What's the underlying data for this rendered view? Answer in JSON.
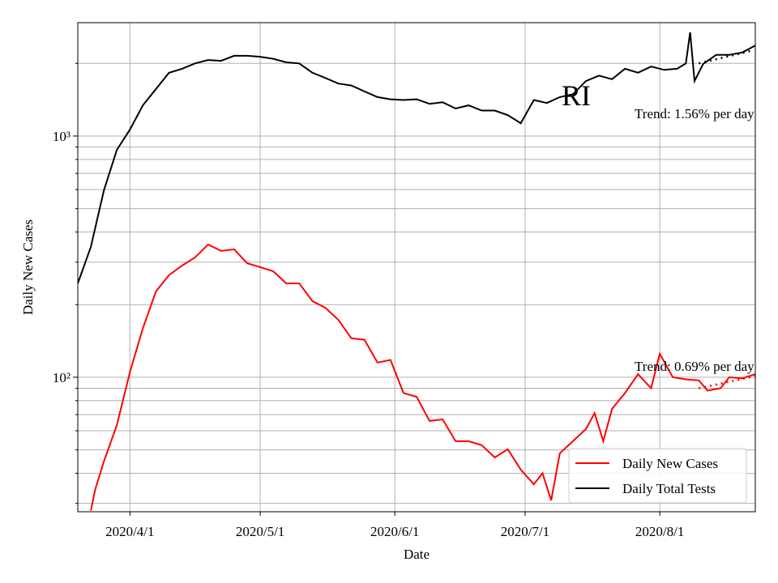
{
  "chart_data": {
    "type": "line",
    "x_label": "Date",
    "y_label": "Daily New Cases",
    "log_y": true,
    "grid": true,
    "legend": "lower right",
    "xlim": [
      "2020/3/20",
      "2020/8/23"
    ],
    "xticks": [
      "2020/4/1",
      "2020/5/1",
      "2020/6/1",
      "2020/7/1",
      "2020/8/1"
    ],
    "ylim": [
      27.7,
      2950
    ],
    "yticks": [
      {
        "value": 100,
        "label": "10²"
      },
      {
        "value": 1000,
        "label": "10³"
      }
    ],
    "yminorticks": [
      30,
      40,
      50,
      60,
      70,
      80,
      90,
      200,
      300,
      400,
      500,
      600,
      700,
      800,
      900,
      2000
    ],
    "annotations": [
      "RI",
      "Trend: 1.56% per day",
      "Trend: 0.69% per day"
    ],
    "series": [
      {
        "name": "Daily New Cases",
        "color": "#ff0000",
        "x": [
          "2020/3/23",
          "2020/3/24",
          "2020/3/26",
          "2020/3/29",
          "2020/4/1",
          "2020/4/4",
          "2020/4/7",
          "2020/4/10",
          "2020/4/13",
          "2020/4/16",
          "2020/4/19",
          "2020/4/22",
          "2020/4/25",
          "2020/4/28",
          "2020/5/1",
          "2020/5/4",
          "2020/5/7",
          "2020/5/10",
          "2020/5/13",
          "2020/5/16",
          "2020/5/19",
          "2020/5/22",
          "2020/5/25",
          "2020/5/28",
          "2020/5/31",
          "2020/6/3",
          "2020/6/6",
          "2020/6/9",
          "2020/6/12",
          "2020/6/15",
          "2020/6/18",
          "2020/6/21",
          "2020/6/24",
          "2020/6/27",
          "2020/6/30",
          "2020/7/3",
          "2020/7/5",
          "2020/7/7",
          "2020/7/9",
          "2020/7/12",
          "2020/7/15",
          "2020/7/17",
          "2020/7/19",
          "2020/7/21",
          "2020/7/24",
          "2020/7/27",
          "2020/7/30",
          "2020/8/1",
          "2020/8/4",
          "2020/8/7",
          "2020/8/10",
          "2020/8/12",
          "2020/8/15",
          "2020/8/17",
          "2020/8/20",
          "2020/8/23"
        ],
        "values": [
          28,
          34.2,
          44.8,
          63.4,
          105,
          160,
          227,
          265,
          290,
          314,
          355,
          334,
          339,
          297,
          286,
          275,
          245,
          245,
          207,
          194,
          173,
          145,
          143,
          115,
          118,
          86,
          83,
          65.9,
          66.9,
          54.3,
          54.3,
          52.3,
          46.5,
          50.3,
          41.4,
          36,
          40,
          30.9,
          48.4,
          54.3,
          61,
          71,
          54.3,
          74,
          86,
          103,
          90,
          125,
          100,
          98,
          97,
          88,
          90,
          100,
          99,
          103
        ]
      },
      {
        "name": "Daily Total Tests",
        "color": "#000000",
        "x": [
          "2020/3/20",
          "2020/3/23",
          "2020/3/26",
          "2020/3/29",
          "2020/4/1",
          "2020/4/4",
          "2020/4/7",
          "2020/4/10",
          "2020/4/13",
          "2020/4/16",
          "2020/4/19",
          "2020/4/22",
          "2020/4/25",
          "2020/4/28",
          "2020/5/1",
          "2020/5/4",
          "2020/5/7",
          "2020/5/10",
          "2020/5/13",
          "2020/5/16",
          "2020/5/19",
          "2020/5/22",
          "2020/5/25",
          "2020/5/28",
          "2020/5/31",
          "2020/6/3",
          "2020/6/6",
          "2020/6/9",
          "2020/6/12",
          "2020/6/15",
          "2020/6/18",
          "2020/6/21",
          "2020/6/24",
          "2020/6/27",
          "2020/6/30",
          "2020/7/3",
          "2020/7/6",
          "2020/7/9",
          "2020/7/12",
          "2020/7/15",
          "2020/7/18",
          "2020/7/21",
          "2020/7/24",
          "2020/7/27",
          "2020/7/30",
          "2020/8/2",
          "2020/8/5",
          "2020/8/7",
          "2020/8/8",
          "2020/8/9",
          "2020/8/11",
          "2020/8/14",
          "2020/8/17",
          "2020/8/20",
          "2020/8/23"
        ],
        "values": [
          245,
          347,
          595,
          877,
          1063,
          1342,
          1566,
          1828,
          1900,
          2000,
          2065,
          2050,
          2150,
          2150,
          2130,
          2090,
          2020,
          2000,
          1830,
          1740,
          1650,
          1620,
          1530,
          1450,
          1420,
          1410,
          1420,
          1360,
          1380,
          1300,
          1340,
          1275,
          1275,
          1220,
          1130,
          1410,
          1370,
          1450,
          1490,
          1690,
          1780,
          1720,
          1900,
          1830,
          1940,
          1880,
          1900,
          2000,
          2690,
          1690,
          1990,
          2170,
          2170,
          2220,
          2370
        ]
      }
    ],
    "trend_lines": [
      {
        "color": "#000000",
        "x": [
          "2020/8/10",
          "2020/8/22"
        ],
        "values": [
          2000,
          2255
        ]
      },
      {
        "color": "#ff0000",
        "x": [
          "2020/8/10",
          "2020/8/23"
        ],
        "values": [
          90,
          101
        ]
      }
    ]
  }
}
